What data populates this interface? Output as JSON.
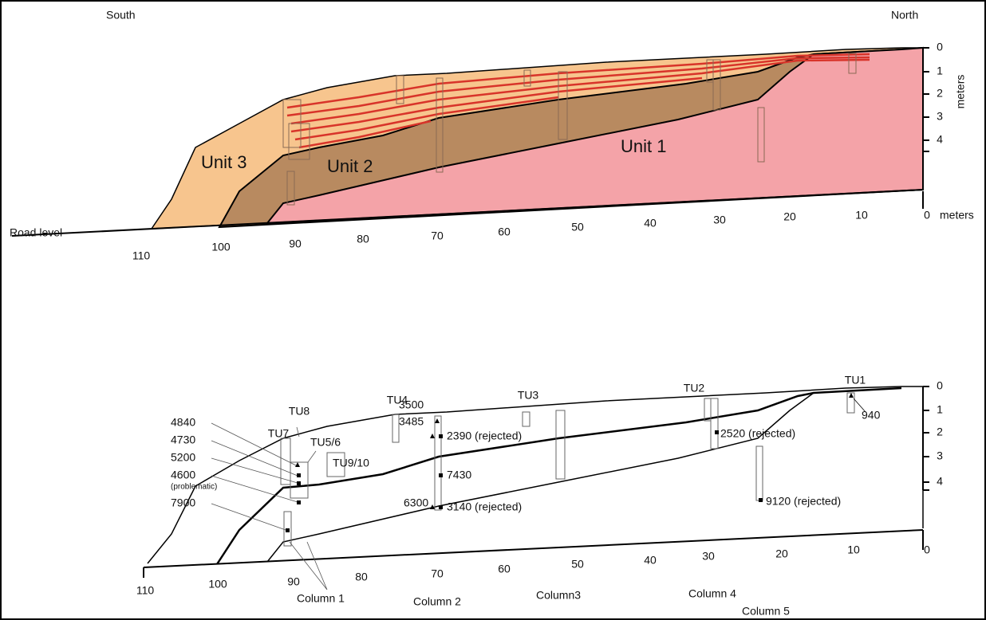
{
  "top": {
    "south": "South",
    "north": "North",
    "units": [
      "Unit 3",
      "Unit 2",
      "Unit 1"
    ],
    "road_level": "Road level",
    "x_labels": [
      "110",
      "100",
      "90",
      "80",
      "70",
      "60",
      "50",
      "40",
      "30",
      "20",
      "10",
      "0"
    ],
    "x_unit": "meters",
    "depth_labels": [
      "0",
      "1",
      "2",
      "3",
      "4"
    ],
    "depth_unit": "meters"
  },
  "bottom": {
    "test_units": [
      "TU8",
      "TU7",
      "TU5/6",
      "TU9/10",
      "TU4",
      "TU3",
      "TU2",
      "TU1"
    ],
    "dates": [
      "4840",
      "4730",
      "5200",
      "4600",
      "(problematic)",
      "7900",
      "3500",
      "3485",
      "2390 (rejected)",
      "7430",
      "6300",
      "3140 (rejected)",
      "2520 (rejected)",
      "9120 (rejected)",
      "940"
    ],
    "x_labels": [
      "110",
      "100",
      "90",
      "80",
      "70",
      "60",
      "50",
      "40",
      "30",
      "20",
      "10",
      "0"
    ],
    "depth_labels": [
      "0",
      "1",
      "2",
      "3",
      "4"
    ],
    "columns": [
      "Column 1",
      "Column 2",
      "Column3",
      "Column 4",
      "Column 5"
    ]
  }
}
